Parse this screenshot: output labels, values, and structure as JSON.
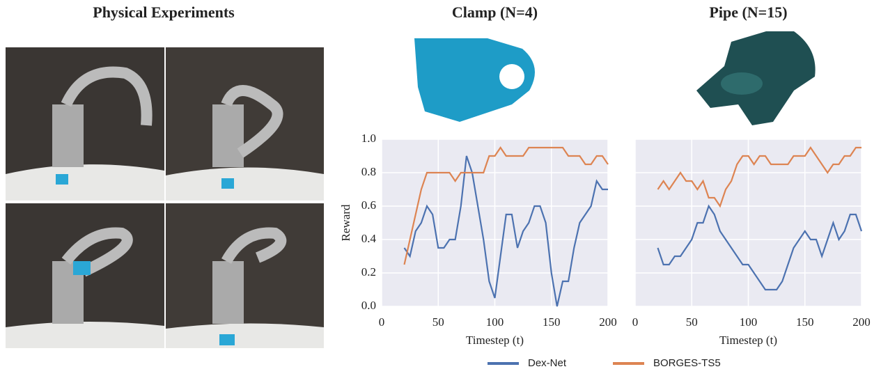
{
  "photo_panel": {
    "title": "Physical Experiments"
  },
  "chart_data": [
    {
      "type": "line",
      "title": "Clamp (N=4)",
      "xlabel": "Timestep (t)",
      "ylabel": "Reward",
      "x": [
        20,
        25,
        30,
        35,
        40,
        45,
        50,
        55,
        60,
        65,
        70,
        75,
        80,
        85,
        90,
        95,
        100,
        105,
        110,
        115,
        120,
        125,
        130,
        135,
        140,
        145,
        150,
        155,
        160,
        165,
        170,
        175,
        180,
        185,
        190,
        195,
        200
      ],
      "series": [
        {
          "name": "Dex-Net",
          "color": "#4c72b0",
          "values": [
            0.35,
            0.3,
            0.45,
            0.5,
            0.6,
            0.55,
            0.35,
            0.35,
            0.4,
            0.4,
            0.6,
            0.9,
            0.8,
            0.6,
            0.4,
            0.15,
            0.05,
            0.3,
            0.55,
            0.55,
            0.35,
            0.45,
            0.5,
            0.6,
            0.6,
            0.5,
            0.2,
            0.0,
            0.15,
            0.15,
            0.35,
            0.5,
            0.55,
            0.6,
            0.75,
            0.7,
            0.7
          ]
        },
        {
          "name": "BORGES-TS5",
          "color": "#dd8452",
          "values": [
            0.25,
            0.4,
            0.55,
            0.7,
            0.8,
            0.8,
            0.8,
            0.8,
            0.8,
            0.75,
            0.8,
            0.8,
            0.8,
            0.8,
            0.8,
            0.9,
            0.9,
            0.95,
            0.9,
            0.9,
            0.9,
            0.9,
            0.95,
            0.95,
            0.95,
            0.95,
            0.95,
            0.95,
            0.95,
            0.9,
            0.9,
            0.9,
            0.85,
            0.85,
            0.9,
            0.9,
            0.85
          ]
        }
      ],
      "xlim": [
        0,
        200
      ],
      "xticks": [
        0,
        50,
        100,
        150,
        200
      ],
      "ylim": [
        0,
        1
      ],
      "yticks": [
        {
          "value": 0,
          "label": "0.0"
        },
        {
          "value": 0.2,
          "label": "0.2"
        },
        {
          "value": 0.4,
          "label": "0.4"
        },
        {
          "value": 0.6,
          "label": "0.6"
        },
        {
          "value": 0.8,
          "label": "0.8"
        },
        {
          "value": 1,
          "label": "1.0"
        }
      ],
      "grid": true,
      "ytick_labels": true
    },
    {
      "type": "line",
      "title": "Pipe (N=15)",
      "xlabel": "Timestep (t)",
      "x": [
        20,
        25,
        30,
        35,
        40,
        45,
        50,
        55,
        60,
        65,
        70,
        75,
        80,
        85,
        90,
        95,
        100,
        105,
        110,
        115,
        120,
        125,
        130,
        135,
        140,
        145,
        150,
        155,
        160,
        165,
        170,
        175,
        180,
        185,
        190,
        195,
        200
      ],
      "series": [
        {
          "color": "#4c72b0",
          "values": [
            0.35,
            0.25,
            0.25,
            0.3,
            0.3,
            0.35,
            0.4,
            0.5,
            0.5,
            0.6,
            0.55,
            0.45,
            0.4,
            0.35,
            0.3,
            0.25,
            0.25,
            0.2,
            0.15,
            0.1,
            0.1,
            0.1,
            0.15,
            0.25,
            0.35,
            0.4,
            0.45,
            0.4,
            0.4,
            0.3,
            0.4,
            0.5,
            0.4,
            0.45,
            0.55,
            0.55,
            0.45
          ]
        },
        {
          "color": "#dd8452",
          "values": [
            0.7,
            0.75,
            0.7,
            0.75,
            0.8,
            0.75,
            0.75,
            0.7,
            0.75,
            0.65,
            0.65,
            0.6,
            0.7,
            0.75,
            0.85,
            0.9,
            0.9,
            0.85,
            0.9,
            0.9,
            0.85,
            0.85,
            0.85,
            0.85,
            0.9,
            0.9,
            0.9,
            0.95,
            0.9,
            0.85,
            0.8,
            0.85,
            0.85,
            0.9,
            0.9,
            0.95,
            0.95
          ]
        }
      ],
      "xlim": [
        0,
        200
      ],
      "xticks": [
        0,
        50,
        100,
        150,
        200
      ],
      "ylim": [
        0,
        1
      ],
      "yticks": [
        0,
        0.2,
        0.4,
        0.6,
        0.8,
        1
      ],
      "grid": true,
      "ytick_labels": false
    }
  ]
}
